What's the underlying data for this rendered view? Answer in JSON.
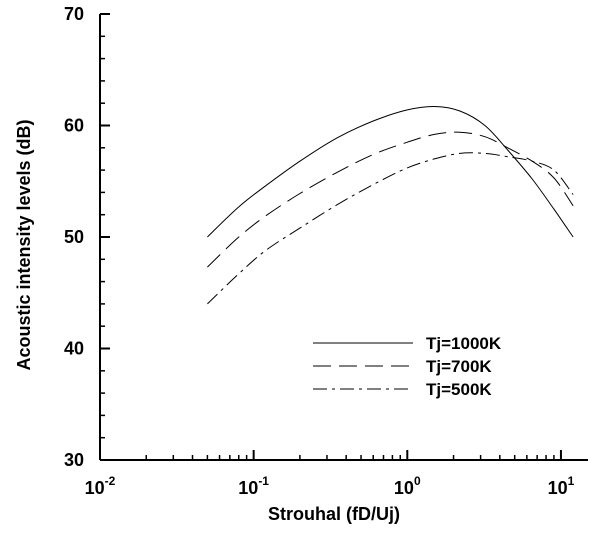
{
  "chart_data": {
    "type": "line",
    "xlabel": "Strouhal (fD/Uj)",
    "ylabel": "Acoustic intensity levels (dB)",
    "xscale": "log",
    "xlim": [
      0.01,
      15
    ],
    "ylim": [
      30,
      70
    ],
    "x_ticks": [
      {
        "value": 0.01,
        "base": "10",
        "exp": "-2"
      },
      {
        "value": 0.1,
        "base": "10",
        "exp": "-1"
      },
      {
        "value": 1,
        "base": "10",
        "exp": "0"
      },
      {
        "value": 10,
        "base": "10",
        "exp": "1"
      }
    ],
    "y_ticks": [
      "30",
      "40",
      "50",
      "60",
      "70"
    ],
    "grid": false,
    "legend_position": "lower-right",
    "series": [
      {
        "name": "Tj=1000K",
        "line_style": "solid",
        "x": [
          0.05,
          0.08,
          0.12,
          0.2,
          0.35,
          0.6,
          1.0,
          1.5,
          2.2,
          3.2,
          4.5,
          6.5,
          9.0,
          12.0
        ],
        "y": [
          50.0,
          52.7,
          54.6,
          56.8,
          58.9,
          60.4,
          61.4,
          61.7,
          61.3,
          60.0,
          57.8,
          55.2,
          52.5,
          50.0
        ]
      },
      {
        "name": "Tj=700K",
        "line_style": "dashed",
        "x": [
          0.05,
          0.08,
          0.12,
          0.2,
          0.35,
          0.6,
          1.0,
          1.5,
          2.2,
          3.2,
          4.5,
          6.5,
          9.0,
          12.0
        ],
        "y": [
          47.3,
          50.0,
          51.9,
          53.9,
          55.8,
          57.4,
          58.5,
          59.2,
          59.4,
          59.0,
          58.0,
          56.8,
          55.3,
          52.8
        ]
      },
      {
        "name": "Tj=500K",
        "line_style": "dashdot",
        "x": [
          0.05,
          0.08,
          0.12,
          0.2,
          0.35,
          0.6,
          1.0,
          1.5,
          2.2,
          3.2,
          4.5,
          6.5,
          9.0,
          12.0
        ],
        "y": [
          44.0,
          46.7,
          48.8,
          50.8,
          52.9,
          54.7,
          56.2,
          57.0,
          57.5,
          57.5,
          57.2,
          56.8,
          56.0,
          53.8
        ]
      }
    ]
  }
}
